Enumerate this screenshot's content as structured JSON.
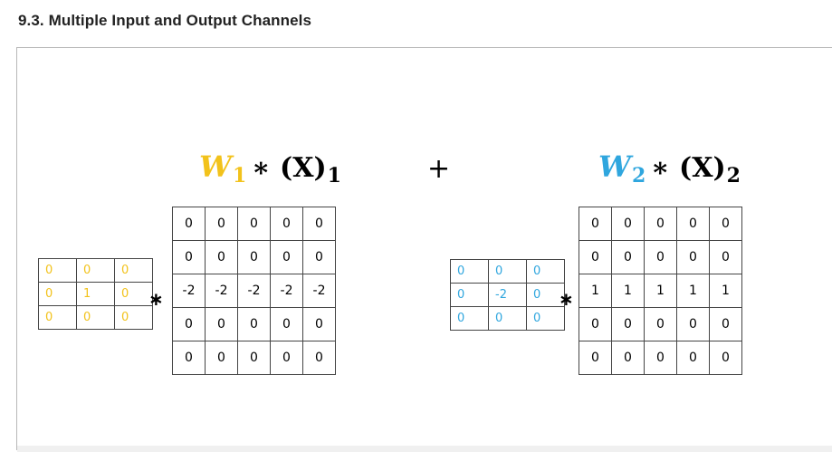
{
  "heading": "9.3. Multiple Input and Output Channels",
  "colors": {
    "kernel1": "#f2c21b",
    "kernel2": "#2fa6de",
    "text": "#000000"
  },
  "left": {
    "w_letter": "W",
    "w_sub": "1",
    "x_part": "∗ (X)",
    "x_sub": "1",
    "op": "∗",
    "kernel": [
      [
        "0",
        "0",
        "0"
      ],
      [
        "0",
        "1",
        "0"
      ],
      [
        "0",
        "0",
        "0"
      ]
    ],
    "input": [
      [
        "0",
        "0",
        "0",
        "0",
        "0"
      ],
      [
        "0",
        "0",
        "0",
        "0",
        "0"
      ],
      [
        "-2",
        "-2",
        "-2",
        "-2",
        "-2"
      ],
      [
        "0",
        "0",
        "0",
        "0",
        "0"
      ],
      [
        "0",
        "0",
        "0",
        "0",
        "0"
      ]
    ]
  },
  "plus": "+",
  "right": {
    "w_letter": "W",
    "w_sub": "2",
    "x_part": "∗ (X)",
    "x_sub": "2",
    "op": "∗",
    "kernel": [
      [
        "0",
        "0",
        "0"
      ],
      [
        "0",
        "-2",
        "0"
      ],
      [
        "0",
        "0",
        "0"
      ]
    ],
    "input": [
      [
        "0",
        "0",
        "0",
        "0",
        "0"
      ],
      [
        "0",
        "0",
        "0",
        "0",
        "0"
      ],
      [
        "1",
        "1",
        "1",
        "1",
        "1"
      ],
      [
        "0",
        "0",
        "0",
        "0",
        "0"
      ],
      [
        "0",
        "0",
        "0",
        "0",
        "0"
      ]
    ]
  }
}
